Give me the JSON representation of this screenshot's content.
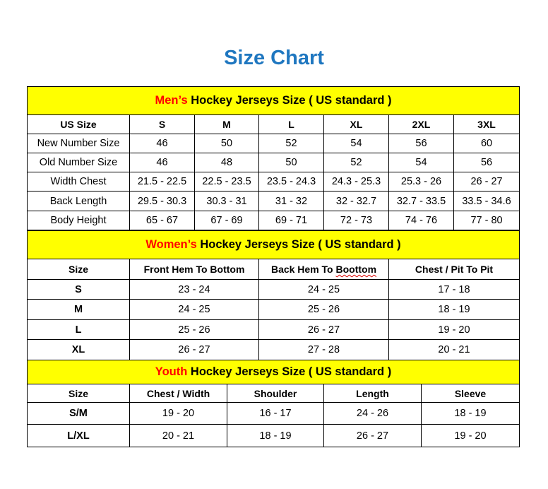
{
  "title": "Size Chart",
  "colors": {
    "title": "#1f77c0",
    "header_bg": "#ffff00",
    "highlight": "#ff0000"
  },
  "men": {
    "heading_highlight": "Men’s",
    "heading_rest": " Hockey Jerseys Size ( US standard )",
    "columns": [
      "US Size",
      "S",
      "M",
      "L",
      "XL",
      "2XL",
      "3XL"
    ],
    "rows": [
      [
        "New Number Size",
        "46",
        "50",
        "52",
        "54",
        "56",
        "60"
      ],
      [
        "Old Number Size",
        "46",
        "48",
        "50",
        "52",
        "54",
        "56"
      ],
      [
        "Width Chest",
        "21.5 - 22.5",
        "22.5 - 23.5",
        "23.5 - 24.3",
        "24.3 - 25.3",
        "25.3 - 26",
        "26 - 27"
      ],
      [
        "Back Length",
        "29.5 - 30.3",
        "30.3 - 31",
        "31 - 32",
        "32 - 32.7",
        "32.7 - 33.5",
        "33.5 - 34.6"
      ],
      [
        "Body Height",
        "65 - 67",
        "67 - 69",
        "69 - 71",
        "72 - 73",
        "74 - 76",
        "77 - 80"
      ]
    ]
  },
  "women": {
    "heading_highlight": "Women’s",
    "heading_rest": " Hockey Jerseys Size ( US standard )",
    "columns": [
      "Size",
      "Front Hem To Bottom",
      "Back Hem To Boottom",
      "Chest / Pit To Pit"
    ],
    "rows": [
      [
        "S",
        "23 - 24",
        "24 - 25",
        "17 - 18"
      ],
      [
        "M",
        "24 - 25",
        "25 - 26",
        "18 - 19"
      ],
      [
        "L",
        "25 - 26",
        "26 - 27",
        "19 - 20"
      ],
      [
        "XL",
        "26 - 27",
        "27 - 28",
        "20 - 21"
      ]
    ]
  },
  "youth": {
    "heading_highlight": "Youth",
    "heading_rest": " Hockey Jerseys Size ( US standard )",
    "columns": [
      "Size",
      "Chest / Width",
      "Shoulder",
      "Length",
      "Sleeve"
    ],
    "rows": [
      [
        "S/M",
        "19 - 20",
        "16 - 17",
        "24 - 26",
        "18 - 19"
      ],
      [
        "L/XL",
        "20 - 21",
        "18 - 19",
        "26 - 27",
        "19 - 20"
      ]
    ]
  }
}
